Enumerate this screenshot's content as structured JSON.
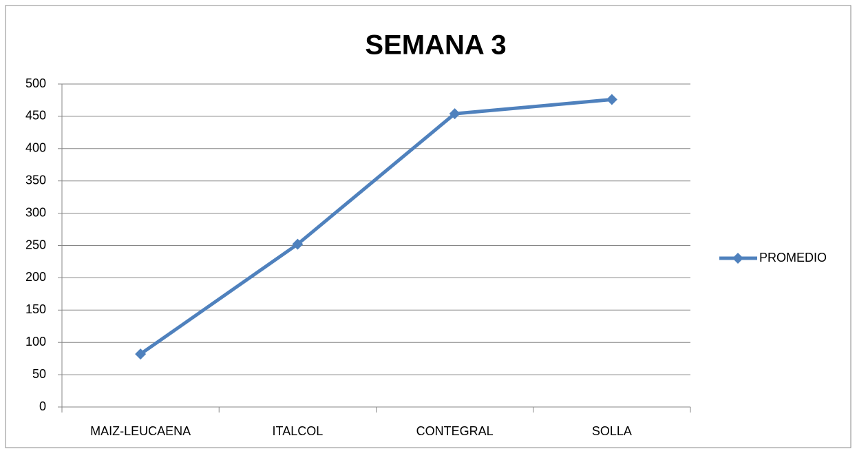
{
  "chart_data": {
    "type": "line",
    "title": "SEMANA 3",
    "categories": [
      "MAIZ-LEUCAENA",
      "ITALCOL",
      "CONTEGRAL",
      "SOLLA"
    ],
    "series": [
      {
        "name": "PROMEDIO",
        "color": "#4f81bd",
        "values": [
          82,
          252,
          454,
          476
        ]
      }
    ],
    "ylim": [
      0,
      500
    ],
    "yticks": [
      0,
      50,
      100,
      150,
      200,
      250,
      300,
      350,
      400,
      450,
      500
    ],
    "grid": true,
    "legend": "right"
  }
}
